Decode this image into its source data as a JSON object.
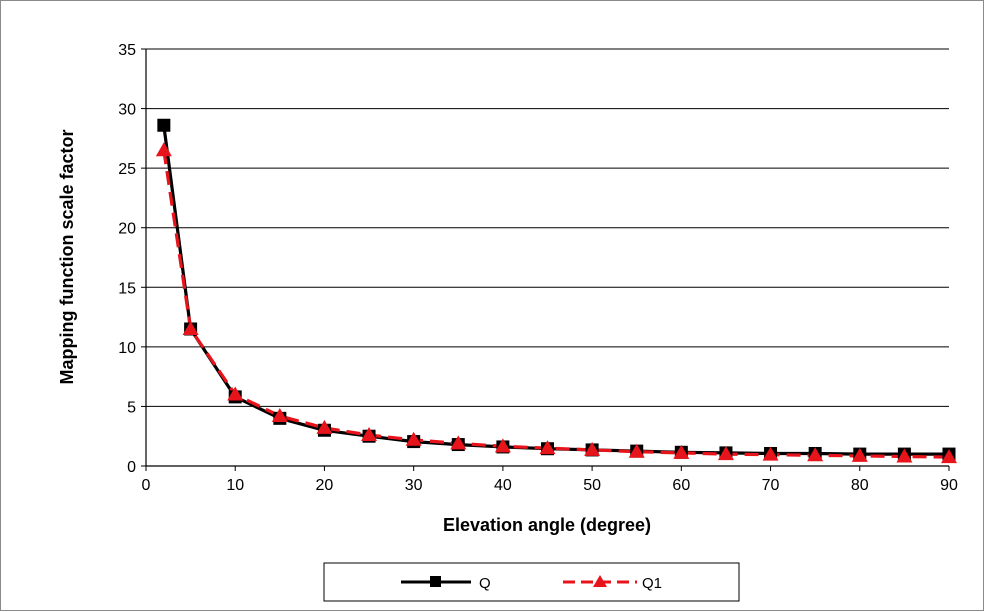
{
  "chart_data": {
    "type": "line",
    "title": "",
    "xlabel": "Elevation angle (degree)",
    "ylabel": "Mapping function scale factor",
    "xlim": [
      0,
      90
    ],
    "ylim": [
      0,
      35
    ],
    "x_ticks": [
      "0",
      "10",
      "20",
      "30",
      "40",
      "50",
      "60",
      "70",
      "80",
      "90"
    ],
    "y_ticks": [
      "0",
      "5",
      "10",
      "15",
      "20",
      "25",
      "30",
      "35"
    ],
    "grid": "horizontal",
    "legend_position": "bottom",
    "x": [
      2,
      5,
      10,
      15,
      20,
      25,
      30,
      35,
      40,
      45,
      50,
      55,
      60,
      65,
      70,
      75,
      80,
      85,
      90
    ],
    "series": [
      {
        "name": "Q",
        "color": "#000000",
        "marker": "square",
        "line": "solid",
        "values": [
          28.6,
          11.5,
          5.8,
          4.0,
          3.0,
          2.5,
          2.05,
          1.8,
          1.6,
          1.45,
          1.35,
          1.25,
          1.15,
          1.1,
          1.05,
          1.05,
          1.0,
          1.0,
          1.0
        ]
      },
      {
        "name": "Q1",
        "color": "#e8141b",
        "marker": "triangle",
        "line": "dashed",
        "values": [
          26.5,
          11.5,
          6.0,
          4.2,
          3.2,
          2.6,
          2.2,
          1.9,
          1.65,
          1.5,
          1.35,
          1.2,
          1.1,
          1.0,
          0.95,
          0.9,
          0.85,
          0.8,
          0.75
        ]
      }
    ]
  }
}
